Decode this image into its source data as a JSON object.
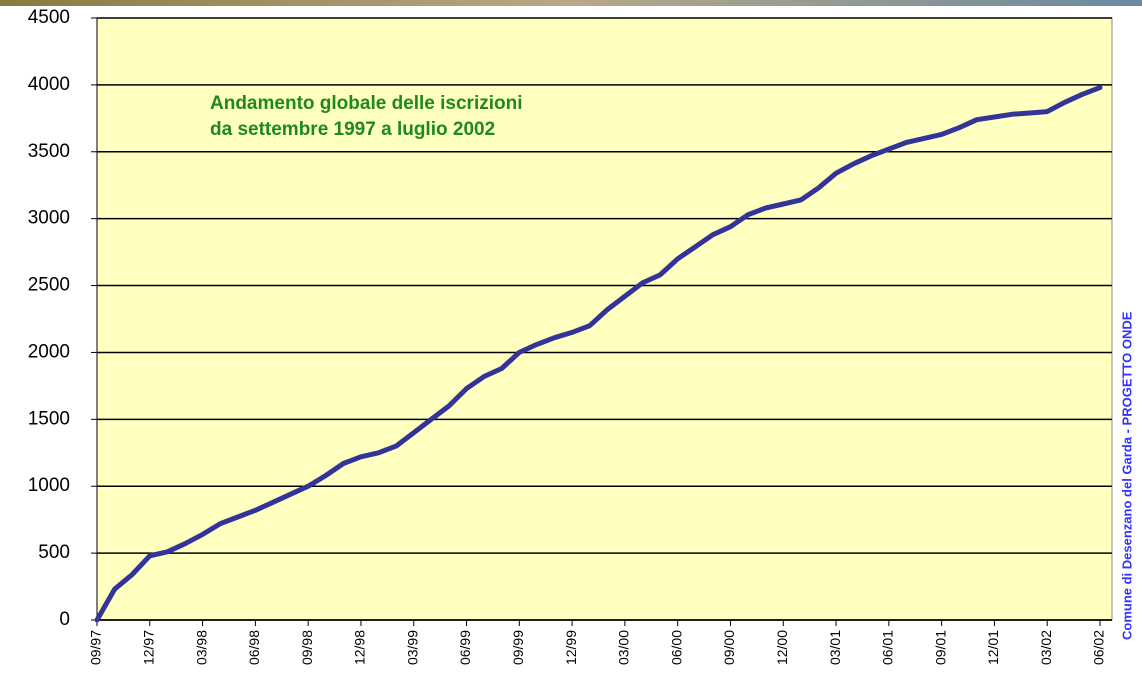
{
  "chart_data": {
    "type": "line",
    "annotation": [
      "Andamento globale delle iscrizioni",
      "da settembre 1997 a luglio 2002"
    ],
    "side_text": "Comune di Desenzano del Garda - PROGETTO ONDE",
    "categories": [
      "09/97",
      null,
      null,
      "12/97",
      null,
      null,
      "03/98",
      null,
      null,
      "06/98",
      null,
      null,
      "09/98",
      null,
      null,
      "12/98",
      null,
      null,
      "03/99",
      null,
      null,
      "06/99",
      null,
      null,
      "09/99",
      null,
      null,
      "12/99",
      null,
      null,
      "03/00",
      null,
      null,
      "06/00",
      null,
      null,
      "09/00",
      null,
      null,
      "12/00",
      null,
      null,
      "03/01",
      null,
      null,
      "06/01",
      null,
      null,
      "09/01",
      null,
      null,
      "12/01",
      null,
      null,
      "03/02",
      null,
      null,
      "06/02"
    ],
    "values": [
      0,
      230,
      340,
      480,
      510,
      570,
      640,
      720,
      770,
      820,
      880,
      940,
      1000,
      1080,
      1170,
      1220,
      1250,
      1300,
      1400,
      1500,
      1600,
      1730,
      1820,
      1880,
      2000,
      2060,
      2110,
      2150,
      2200,
      2320,
      2420,
      2520,
      2580,
      2700,
      2790,
      2880,
      2940,
      3030,
      3080,
      3110,
      3140,
      3230,
      3340,
      3410,
      3470,
      3520,
      3570,
      3600,
      3630,
      3680,
      3740,
      3760,
      3780,
      3790,
      3800,
      3870,
      3930,
      3980
    ],
    "color": "#333399",
    "ylim": [
      0,
      4500
    ],
    "yticks": [
      0,
      500,
      1000,
      1500,
      2000,
      2500,
      3000,
      3500,
      4000,
      4500
    ],
    "grid": true,
    "background": "#ffffc0"
  }
}
